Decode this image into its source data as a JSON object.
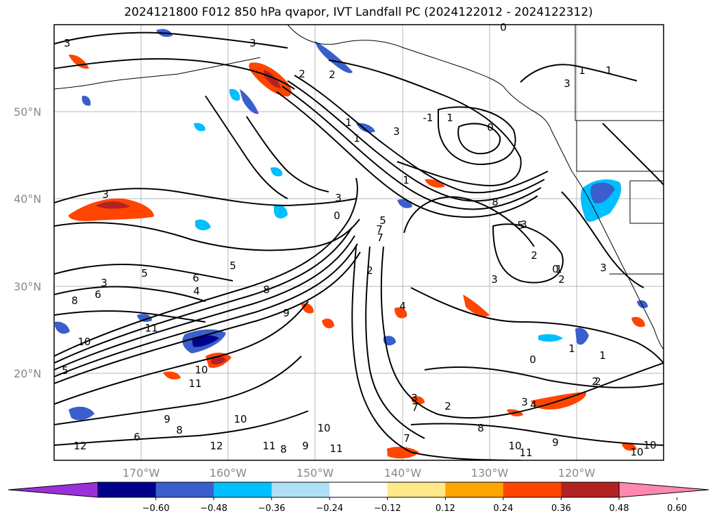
{
  "title": "2024121800 F012 850 hPa qvapor, IVT Landfall PC (2024122012 - 2024122312)",
  "lat_labels": [
    "50°N",
    "40°N",
    "30°N",
    "20°N"
  ],
  "lon_labels": [
    "170°W",
    "160°W",
    "150°W",
    "140°W",
    "130°W",
    "120°W"
  ],
  "colorbar": {
    "colors": [
      "#9b30d9",
      "#00008b",
      "#3a5fcd",
      "#00bfff",
      "#b0e0f8",
      "#ffffff",
      "#ffe98a",
      "#ffa500",
      "#ff4500",
      "#b22222",
      "#ff88b0"
    ],
    "tick_labels": [
      "−0.60",
      "−0.48",
      "−0.36",
      "−0.24",
      "−0.12",
      "0.12",
      "0.24",
      "0.36",
      "0.48",
      "0.60"
    ]
  },
  "contour_labels": [
    "3",
    "3",
    "2",
    "2",
    "1",
    "1",
    "0",
    "1",
    "1",
    "3",
    "3",
    "-1",
    "1",
    "0",
    "1",
    "3",
    "0",
    "8",
    "3",
    "5",
    "3",
    "2",
    "1",
    "3",
    "0",
    "3",
    "2",
    "7",
    "5",
    "5",
    "6",
    "5",
    "4",
    "3",
    "8",
    "8",
    "9",
    "6",
    "10",
    "11",
    "10",
    "11",
    "10",
    "9",
    "8",
    "6",
    "5",
    "12",
    "12",
    "11",
    "11",
    "10",
    "9",
    "8",
    "2",
    "3",
    "4",
    "2",
    "3",
    "4",
    "7",
    "2",
    "7",
    "1",
    "0",
    "1",
    "2",
    "10",
    "11",
    "9",
    "10",
    "10",
    "8",
    "7"
  ],
  "chart_data": {
    "type": "map",
    "title": "2024121800 F012 850 hPa qvapor, IVT Landfall PC (2024122012 - 2024122312)",
    "lon_range": [
      -180,
      -110
    ],
    "lat_range": [
      10,
      60
    ],
    "grid": true,
    "colorbar_levels": [
      -0.6,
      -0.48,
      -0.36,
      -0.24,
      -0.12,
      0.12,
      0.24,
      0.36,
      0.48,
      0.6
    ],
    "colorbar_extend": "both"
  }
}
